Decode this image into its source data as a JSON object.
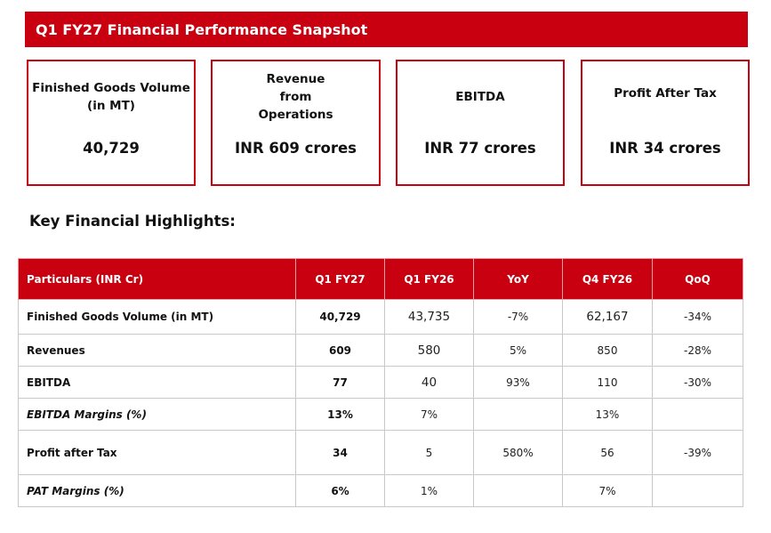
{
  "title": "Q1 FY27 Financial Performance Snapshot",
  "cards": [
    {
      "label": "Finished Goods Volume (in MT)",
      "value": "40,729"
    },
    {
      "label": "Revenue from Operations",
      "value": "INR 609 crores"
    },
    {
      "label": "EBITDA",
      "value": "INR 77 crores"
    },
    {
      "label": "Profit After Tax",
      "value": "INR 34 crores"
    }
  ],
  "highlights_title": "Key Financial Highlights:",
  "table": {
    "headers": [
      "Particulars (INR Cr)",
      "Q1 FY27",
      "Q1 FY26",
      "YoY",
      "Q4 FY26",
      "QoQ"
    ],
    "rows": [
      {
        "label": "Finished Goods Volume (in MT)",
        "italic": false,
        "cells": [
          "40,729",
          "43,735",
          "-7%",
          "62,167",
          "-34%"
        ]
      },
      {
        "label": "Revenues",
        "italic": false,
        "cells": [
          "609",
          "580",
          "5%",
          "850",
          "-28%"
        ]
      },
      {
        "label": "EBITDA",
        "italic": false,
        "cells": [
          "77",
          "40",
          "93%",
          "110",
          "-30%"
        ]
      },
      {
        "label": "EBITDA Margins (%)",
        "italic": true,
        "cells": [
          "13%",
          "7%",
          "",
          "13%",
          ""
        ]
      },
      {
        "label": "Profit after Tax",
        "italic": false,
        "cells": [
          "34",
          "5",
          "580%",
          "56",
          "-39%"
        ]
      },
      {
        "label": "PAT Margins (%)",
        "italic": true,
        "cells": [
          "6%",
          "1%",
          "",
          "7%",
          ""
        ]
      }
    ]
  }
}
